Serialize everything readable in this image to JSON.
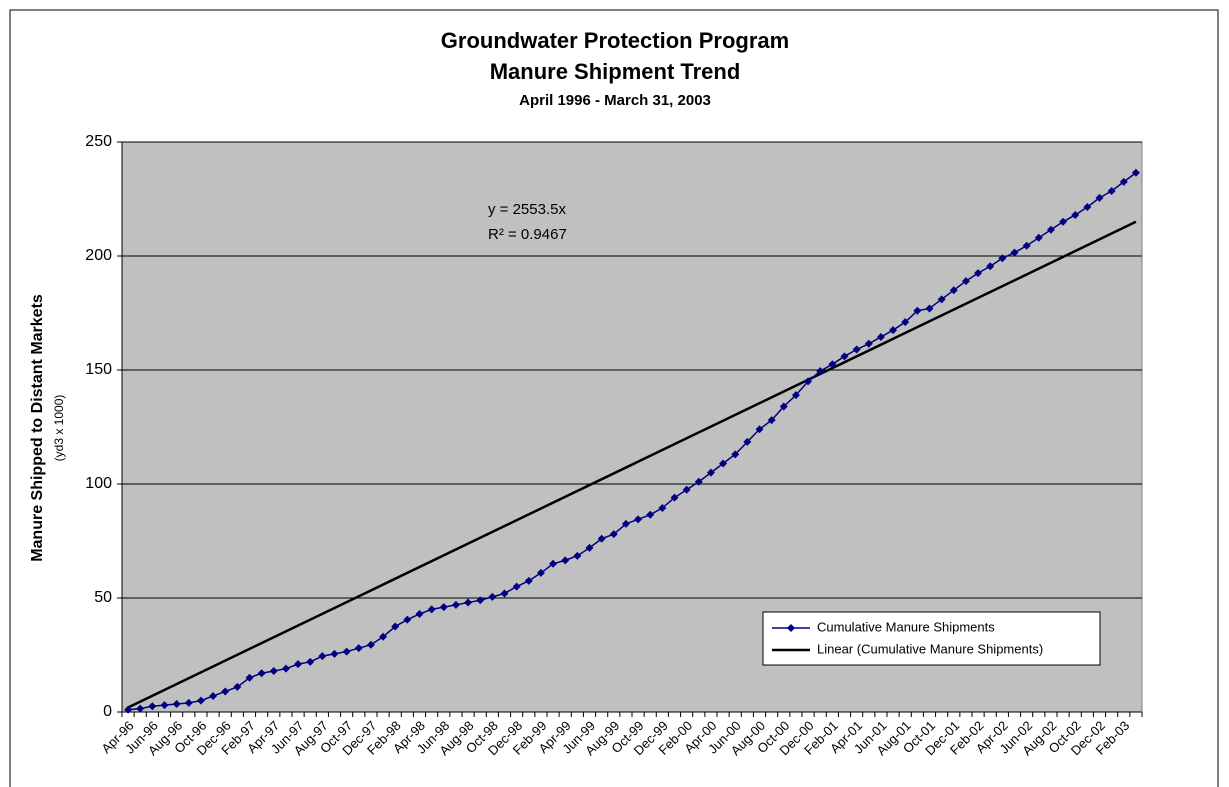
{
  "chart_data": {
    "type": "line",
    "title": "Groundwater Protection Program",
    "subtitle": "Manure Shipment Trend",
    "date_range": "April 1996 - March 31, 2003",
    "y_label": "Manure Shipped to Distant Markets",
    "y_unit": "(yd3 x 1000)",
    "equation": "y = 2553.5x",
    "r_squared": "R² = 0.9467",
    "categories": [
      "Apr-96",
      null,
      "Jun-96",
      null,
      "Aug-96",
      null,
      "Oct-96",
      null,
      "Dec-96",
      null,
      "Feb-97",
      null,
      "Apr-97",
      null,
      "Jun-97",
      null,
      "Aug-97",
      null,
      "Oct-97",
      null,
      "Dec-97",
      null,
      "Feb-98",
      null,
      "Apr-98",
      null,
      "Jun-98",
      null,
      "Aug-98",
      null,
      "Oct-98",
      null,
      "Dec-98",
      null,
      "Feb-99",
      null,
      "Apr-99",
      null,
      "Jun-99",
      null,
      "Aug-99",
      null,
      "Oct-99",
      null,
      "Dec-99",
      null,
      "Feb-00",
      null,
      "Apr-00",
      null,
      "Jun-00",
      null,
      "Aug-00",
      null,
      "Oct-00",
      null,
      "Dec-00",
      null,
      "Feb-01",
      null,
      "Apr-01",
      null,
      "Jun-01",
      null,
      "Aug-01",
      null,
      "Oct-01",
      null,
      "Dec-01",
      null,
      "Feb-02",
      null,
      "Apr-02",
      null,
      "Jun-02",
      null,
      "Aug-02",
      null,
      "Oct-02",
      null,
      "Dec-02",
      null,
      "Feb-03",
      null
    ],
    "series": [
      {
        "name": "Cumulative Manure Shipments",
        "color": "#000080",
        "values": [
          1,
          1.5,
          2.5,
          3,
          3.5,
          4,
          5,
          7,
          9,
          11,
          15,
          17,
          18,
          19,
          21,
          22,
          24.5,
          25.5,
          26.5,
          28,
          29.5,
          33,
          37.5,
          40.5,
          43,
          45,
          46,
          47,
          48,
          49,
          50.5,
          52,
          55,
          57.5,
          61,
          65,
          66.5,
          68.5,
          72,
          76,
          78,
          82.5,
          84.5,
          86.5,
          89.5,
          94,
          97.5,
          101,
          105,
          109,
          113,
          118.5,
          124,
          128,
          134,
          139,
          145,
          149.5,
          152.5,
          156,
          159,
          161.5,
          164.5,
          167.5,
          171,
          176,
          177,
          181,
          185,
          189,
          192.5,
          195.5,
          199,
          201.5,
          204.5,
          208,
          211.5,
          215,
          218,
          221.5,
          225.5,
          228.5,
          232.5,
          236.5
        ]
      }
    ],
    "trendline": {
      "name": "Linear (Cumulative Manure Shipments)",
      "color": "#000000",
      "values": [
        2,
        215
      ]
    },
    "ylim": [
      0,
      250
    ],
    "yticks": [
      0,
      50,
      100,
      150,
      200,
      250
    ],
    "grid": true,
    "plot_color": "#c0c0c0"
  }
}
